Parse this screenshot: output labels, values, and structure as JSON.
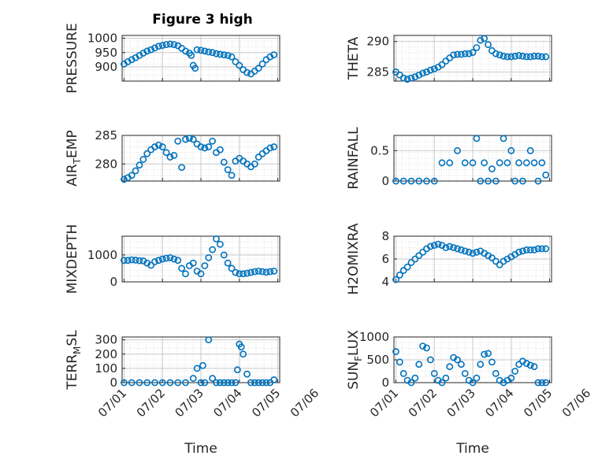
{
  "figure": {
    "title": "Figure 3 high",
    "xlabel": "Time",
    "xtick_labels": [
      "07/01",
      "07/02",
      "07/03",
      "07/04",
      "07/05",
      "07/06"
    ],
    "marker_color": "#0072BD",
    "grid": "on (major + minor dotted)"
  },
  "chart_data": [
    {
      "type": "scatter",
      "id": "pressure",
      "ylabel": "PRESSURE",
      "yticks": [
        "1000",
        "950",
        "900"
      ],
      "ylim": [
        850,
        1010
      ],
      "x_unit": "days since 07/01",
      "x": [
        1.0,
        1.1,
        1.2,
        1.3,
        1.4,
        1.5,
        1.6,
        1.7,
        1.8,
        1.9,
        2.0,
        2.1,
        2.2,
        2.3,
        2.4,
        2.5,
        2.6,
        2.7,
        2.75,
        2.8,
        2.85,
        2.9,
        3.0,
        3.1,
        3.2,
        3.3,
        3.4,
        3.5,
        3.6,
        3.7,
        3.8,
        3.9,
        4.0,
        4.1,
        4.2,
        4.3,
        4.4,
        4.5,
        4.6,
        4.7,
        4.8,
        4.9
      ],
      "y": [
        910,
        918,
        925,
        932,
        940,
        948,
        955,
        960,
        966,
        972,
        975,
        978,
        980,
        978,
        974,
        965,
        955,
        948,
        940,
        905,
        895,
        960,
        958,
        955,
        952,
        950,
        946,
        944,
        942,
        940,
        935,
        918,
        905,
        890,
        880,
        875,
        885,
        895,
        910,
        925,
        935,
        942
      ]
    },
    {
      "type": "scatter",
      "id": "theta",
      "ylabel": "THETA",
      "yticks": [
        "290",
        "285"
      ],
      "ylim": [
        283.5,
        291
      ],
      "x": [
        1.0,
        1.1,
        1.2,
        1.3,
        1.4,
        1.5,
        1.6,
        1.7,
        1.8,
        1.9,
        2.0,
        2.1,
        2.2,
        2.3,
        2.4,
        2.5,
        2.6,
        2.7,
        2.8,
        2.9,
        3.0,
        3.1,
        3.2,
        3.3,
        3.4,
        3.5,
        3.6,
        3.7,
        3.8,
        3.9,
        4.0,
        4.1,
        4.2,
        4.3,
        4.4,
        4.5,
        4.6,
        4.7,
        4.8,
        4.9
      ],
      "y": [
        285.0,
        284.5,
        284.0,
        283.8,
        284.0,
        284.2,
        284.5,
        284.8,
        285.0,
        285.3,
        285.5,
        285.8,
        286.2,
        286.8,
        287.3,
        287.8,
        287.9,
        287.9,
        288.0,
        288.0,
        288.2,
        289.0,
        290.2,
        290.5,
        289.5,
        288.5,
        288.0,
        287.8,
        287.6,
        287.5,
        287.5,
        287.6,
        287.7,
        287.6,
        287.5,
        287.5,
        287.6,
        287.6,
        287.5,
        287.5
      ]
    },
    {
      "type": "scatter",
      "id": "air_temp",
      "ylabel": "AIR_TEMP",
      "yticks": [
        "285",
        "280"
      ],
      "ylim": [
        277,
        285
      ],
      "x": [
        1.0,
        1.1,
        1.2,
        1.3,
        1.4,
        1.5,
        1.6,
        1.7,
        1.8,
        1.9,
        2.0,
        2.1,
        2.2,
        2.3,
        2.4,
        2.5,
        2.6,
        2.7,
        2.8,
        2.9,
        3.0,
        3.1,
        3.2,
        3.3,
        3.4,
        3.5,
        3.6,
        3.7,
        3.8,
        3.9,
        4.0,
        4.1,
        4.2,
        4.3,
        4.4,
        4.5,
        4.6,
        4.7,
        4.8,
        4.9
      ],
      "y": [
        277.3,
        277.6,
        278.0,
        278.8,
        279.8,
        280.8,
        281.8,
        282.5,
        283.0,
        283.3,
        283.0,
        282.0,
        281.2,
        281.5,
        284.0,
        279.4,
        284.3,
        284.5,
        284.3,
        283.5,
        283.0,
        282.8,
        283.0,
        284.0,
        282.0,
        282.5,
        280.3,
        279.0,
        278.0,
        280.5,
        281.0,
        280.5,
        280.0,
        279.5,
        280.0,
        281.2,
        281.8,
        282.3,
        282.8,
        283.0
      ]
    },
    {
      "type": "scatter",
      "id": "rainfall",
      "ylabel": "RAINFALL",
      "yticks": [
        "0.5",
        "0"
      ],
      "ylim": [
        0,
        0.75
      ],
      "x": [
        1.0,
        1.2,
        1.4,
        1.6,
        1.8,
        2.0,
        2.2,
        2.4,
        2.6,
        2.8,
        3.0,
        3.1,
        3.2,
        3.3,
        3.4,
        3.5,
        3.6,
        3.7,
        3.8,
        3.9,
        4.0,
        4.1,
        4.2,
        4.3,
        4.4,
        4.5,
        4.6,
        4.7,
        4.8,
        4.9
      ],
      "y": [
        0,
        0,
        0,
        0,
        0,
        0,
        0.3,
        0.3,
        0.5,
        0.3,
        0.3,
        0.7,
        0,
        0.3,
        0,
        0.2,
        0,
        0.3,
        0.7,
        0.3,
        0.5,
        0,
        0.3,
        0,
        0.3,
        0.5,
        0.3,
        0,
        0.3,
        0.1
      ]
    },
    {
      "type": "scatter",
      "id": "mixdepth",
      "ylabel": "MIXDEPTH",
      "yticks": [
        "1000",
        "0"
      ],
      "ylim": [
        0,
        1700
      ],
      "x": [
        1.0,
        1.1,
        1.2,
        1.3,
        1.4,
        1.5,
        1.6,
        1.7,
        1.8,
        1.9,
        2.0,
        2.1,
        2.2,
        2.3,
        2.4,
        2.5,
        2.6,
        2.7,
        2.8,
        2.9,
        3.0,
        3.1,
        3.2,
        3.3,
        3.4,
        3.5,
        3.6,
        3.7,
        3.8,
        3.9,
        4.0,
        4.1,
        4.2,
        4.3,
        4.4,
        4.5,
        4.6,
        4.7,
        4.8,
        4.9
      ],
      "y": [
        800,
        800,
        820,
        810,
        790,
        780,
        700,
        620,
        750,
        800,
        850,
        880,
        900,
        850,
        800,
        500,
        300,
        600,
        700,
        400,
        300,
        600,
        900,
        1200,
        1600,
        1400,
        1000,
        700,
        500,
        350,
        300,
        300,
        320,
        350,
        380,
        400,
        380,
        360,
        380,
        400
      ]
    },
    {
      "type": "scatter",
      "id": "h2omixra",
      "ylabel": "H2OMIXRA",
      "yticks": [
        "8",
        "6",
        "4"
      ],
      "ylim": [
        4,
        8
      ],
      "x": [
        1.0,
        1.1,
        1.2,
        1.3,
        1.4,
        1.5,
        1.6,
        1.7,
        1.8,
        1.9,
        2.0,
        2.1,
        2.2,
        2.3,
        2.4,
        2.5,
        2.6,
        2.7,
        2.8,
        2.9,
        3.0,
        3.1,
        3.2,
        3.3,
        3.4,
        3.5,
        3.6,
        3.7,
        3.8,
        3.9,
        4.0,
        4.1,
        4.2,
        4.3,
        4.4,
        4.5,
        4.6,
        4.7,
        4.8,
        4.9
      ],
      "y": [
        4.2,
        4.6,
        5.0,
        5.3,
        5.7,
        6.0,
        6.3,
        6.6,
        6.9,
        7.1,
        7.2,
        7.3,
        7.2,
        7.0,
        7.1,
        7.0,
        6.9,
        6.8,
        6.7,
        6.6,
        6.5,
        6.6,
        6.7,
        6.5,
        6.3,
        6.1,
        5.8,
        5.5,
        5.8,
        6.0,
        6.2,
        6.4,
        6.6,
        6.7,
        6.8,
        6.8,
        6.8,
        6.9,
        6.9,
        6.9
      ]
    },
    {
      "type": "scatter",
      "id": "terr_msl",
      "ylabel": "TERR_MSL",
      "yticks": [
        "300",
        "200",
        "100",
        "0"
      ],
      "ylim": [
        0,
        320
      ],
      "x": [
        1.0,
        1.2,
        1.4,
        1.6,
        1.8,
        2.0,
        2.2,
        2.4,
        2.6,
        2.8,
        2.9,
        3.0,
        3.05,
        3.1,
        3.2,
        3.3,
        3.4,
        3.5,
        3.6,
        3.7,
        3.8,
        3.9,
        3.95,
        4.0,
        4.05,
        4.1,
        4.2,
        4.3,
        4.4,
        4.5,
        4.6,
        4.7,
        4.8,
        4.9
      ],
      "y": [
        0,
        0,
        0,
        0,
        0,
        0,
        0,
        0,
        0,
        30,
        100,
        0,
        120,
        0,
        300,
        30,
        0,
        0,
        0,
        0,
        0,
        0,
        90,
        270,
        250,
        200,
        60,
        0,
        0,
        0,
        0,
        0,
        0,
        20
      ]
    },
    {
      "type": "scatter",
      "id": "sun_flux",
      "ylabel": "SUN_FLUX",
      "yticks": [
        "1000",
        "500",
        "0"
      ],
      "ylim": [
        0,
        1000
      ],
      "x": [
        1.0,
        1.1,
        1.2,
        1.3,
        1.4,
        1.5,
        1.6,
        1.7,
        1.8,
        1.9,
        2.0,
        2.1,
        2.2,
        2.3,
        2.4,
        2.5,
        2.6,
        2.7,
        2.8,
        2.9,
        3.0,
        3.1,
        3.2,
        3.3,
        3.4,
        3.5,
        3.6,
        3.7,
        3.8,
        3.9,
        4.0,
        4.1,
        4.2,
        4.3,
        4.4,
        4.5,
        4.6,
        4.7,
        4.8,
        4.9
      ],
      "y": [
        680,
        450,
        200,
        50,
        0,
        100,
        400,
        800,
        760,
        500,
        200,
        50,
        0,
        100,
        350,
        550,
        500,
        400,
        200,
        50,
        0,
        100,
        400,
        620,
        640,
        450,
        200,
        50,
        0,
        50,
        100,
        250,
        400,
        470,
        420,
        380,
        350,
        0,
        0,
        0
      ]
    }
  ]
}
